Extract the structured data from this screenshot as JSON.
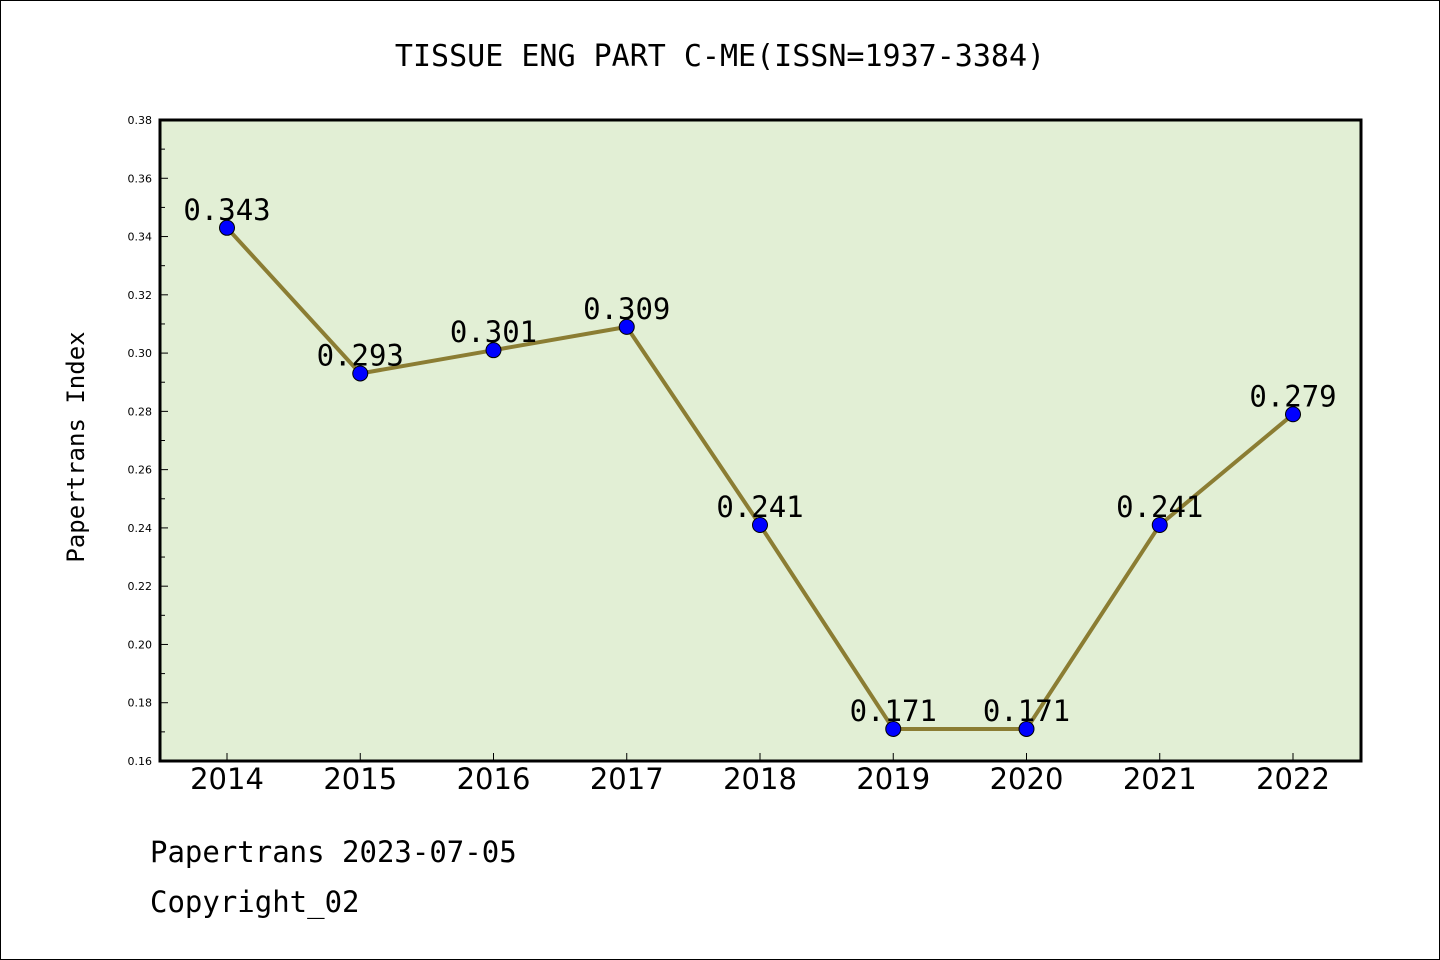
{
  "chart_data": {
    "type": "line",
    "title": "TISSUE ENG PART C-ME(ISSN=1937-3384)",
    "ylabel": "Papertrans Index",
    "xlabel": "",
    "categories": [
      "2014",
      "2015",
      "2016",
      "2017",
      "2018",
      "2019",
      "2020",
      "2021",
      "2022"
    ],
    "values": [
      0.343,
      0.293,
      0.301,
      0.309,
      0.241,
      0.171,
      0.171,
      0.241,
      0.279
    ],
    "data_labels": [
      "0.343",
      "0.293",
      "0.301",
      "0.309",
      "0.241",
      "0.171",
      "0.171",
      "0.241",
      "0.279"
    ],
    "ylim": [
      0.16,
      0.38
    ],
    "yticks": [
      0.16,
      0.18,
      0.2,
      0.22,
      0.24,
      0.26,
      0.28,
      0.3,
      0.32,
      0.34,
      0.36,
      0.38
    ],
    "ytick_labels": [
      "0.16",
      "0.18",
      "0.20",
      "0.22",
      "0.24",
      "0.26",
      "0.28",
      "0.30",
      "0.32",
      "0.34",
      "0.36",
      "0.38"
    ],
    "grid": false,
    "colors": {
      "plot_background": "#e2efd5",
      "line": "#8b7d33",
      "marker": "#0000ff"
    }
  },
  "footer": {
    "line1": "Papertrans 2023-07-05",
    "line2": "Copyright_02"
  }
}
